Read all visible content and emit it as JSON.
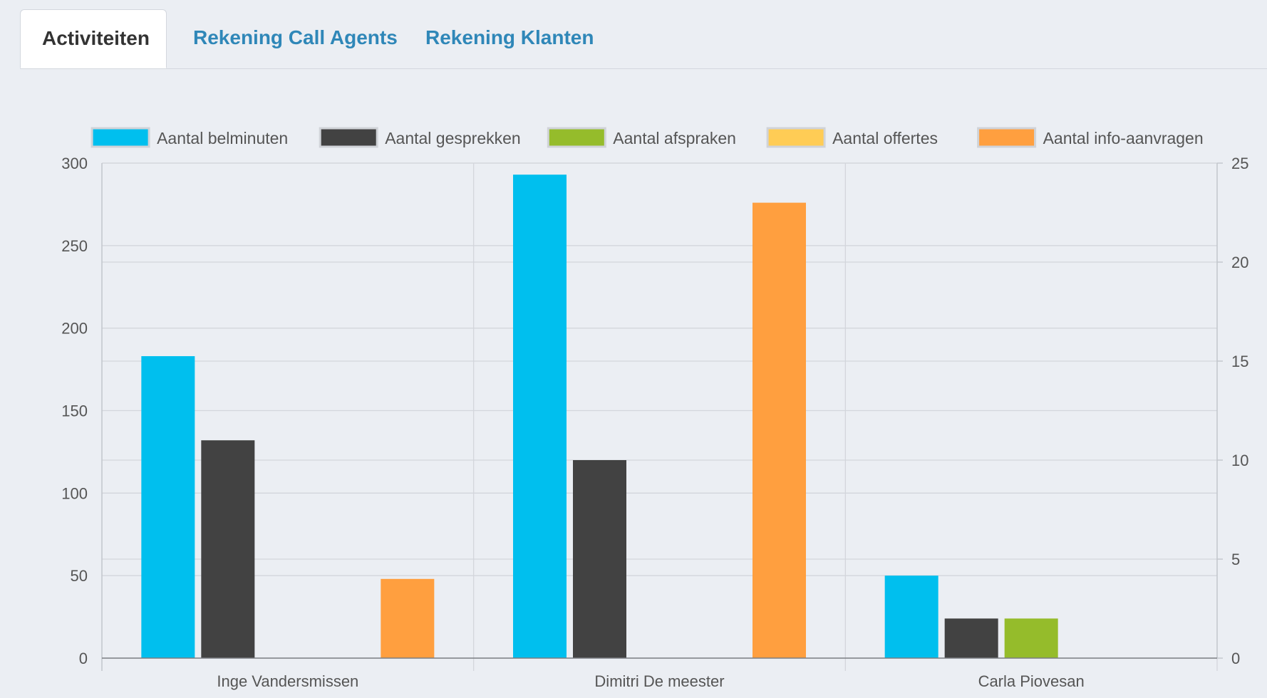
{
  "tabs": [
    {
      "label": "Activiteiten",
      "active": true
    },
    {
      "label": "Rekening Call Agents",
      "active": false
    },
    {
      "label": "Rekening Klanten",
      "active": false
    }
  ],
  "chart_data": {
    "type": "bar",
    "categories": [
      "Inge Vandersmissen",
      "Dimitri De meester",
      "Carla Piovesan"
    ],
    "series": [
      {
        "name": "Aantal belminuten",
        "axis": "left",
        "color": "#00bfee",
        "values": [
          183,
          293,
          50
        ]
      },
      {
        "name": "Aantal gesprekken",
        "axis": "right",
        "color": "#424242",
        "values": [
          11,
          10,
          2
        ]
      },
      {
        "name": "Aantal afspraken",
        "axis": "right",
        "color": "#95bc2b",
        "values": [
          0,
          0,
          2
        ]
      },
      {
        "name": "Aantal offertes",
        "axis": "right",
        "color": "#ffcc55",
        "values": [
          0,
          0,
          0
        ]
      },
      {
        "name": "Aantal info-aanvragen",
        "axis": "right",
        "color": "#ff9f3f",
        "values": [
          4,
          23,
          0
        ]
      }
    ],
    "y_left": {
      "min": 0,
      "max": 300,
      "ticks": [
        0,
        50,
        100,
        150,
        200,
        250,
        300
      ]
    },
    "y_right": {
      "min": 0,
      "max": 25,
      "ticks": [
        0,
        5,
        10,
        15,
        20,
        25
      ]
    },
    "legend_position": "top",
    "grid": true
  }
}
